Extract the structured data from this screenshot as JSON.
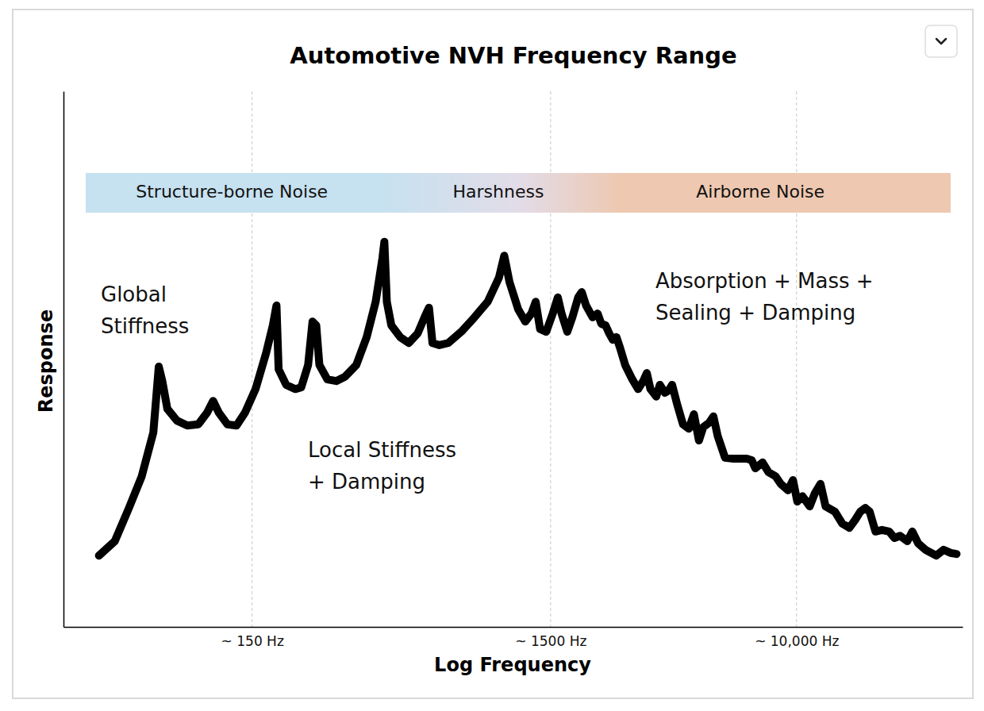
{
  "chart_data": {
    "type": "line",
    "title": "Automotive NVH Frequency Range",
    "x_label": "Log Frequency",
    "y_label": "Response",
    "log": "x",
    "grid": true,
    "tick_labels": "x",
    "color": "#000000",
    "line_style": "solid",
    "marker": "none",
    "xlim": [
      35,
      36000
    ],
    "ylim": [
      0,
      100
    ],
    "xticks": [
      {
        "value": 150,
        "label": "~ 150 Hz"
      },
      {
        "value": 1500,
        "label": "~ 1500 Hz"
      },
      {
        "value": 10000,
        "label": "~ 10,000 Hz"
      }
    ],
    "bands": [
      {
        "label": "Structure-borne Noise",
        "color": "#c6e1f0"
      },
      {
        "label": "Harshness",
        "color": "#e2dce8"
      },
      {
        "label": "Airborne Noise",
        "color": "#eec8b0"
      }
    ],
    "annotations": [
      "Global\nStiffness",
      "Local Stiffness\n+ Damping",
      "Absorption + Mass +\nSealing + Damping"
    ],
    "x": [
      46,
      52,
      58,
      64,
      70,
      73,
      75,
      78,
      84,
      91,
      99,
      106,
      111,
      116,
      124,
      133,
      142,
      154,
      167,
      176,
      181,
      184,
      195,
      209,
      219,
      231,
      239,
      246,
      252,
      268,
      287,
      307,
      335,
      363,
      389,
      410,
      416,
      424,
      439,
      470,
      502,
      538,
      567,
      587,
      603,
      636,
      681,
      753,
      834,
      923,
      1007,
      1049,
      1092,
      1168,
      1234,
      1293,
      1337,
      1383,
      1450,
      1525,
      1586,
      1632,
      1706,
      1774,
      1855,
      1907,
      1972,
      2074,
      2156,
      2217,
      2292,
      2357,
      2424,
      2493,
      2563,
      2666,
      2818,
      2947,
      3065,
      3151,
      3240,
      3388,
      3484,
      3623,
      3725,
      3830,
      3984,
      4166,
      4357,
      4531,
      4710,
      4871,
      5093,
      5266,
      5446,
      5758,
      6158,
      6808,
      7079,
      7279,
      7694,
      8051,
      8511,
      8850,
      9359,
      9730,
      10060,
      10470,
      11070,
      11510,
      12030,
      12510,
      13450,
      14220,
      15040,
      15730,
      16350,
      17010,
      17580,
      18390,
      19330,
      20440,
      21270,
      22230,
      23510,
      24440,
      25560,
      27030,
      29390,
      31080,
      32870,
      34370
    ],
    "values": [
      13.3,
      16.0,
      22.2,
      28.1,
      36.3,
      48.6,
      45.9,
      40.7,
      38.5,
      37.6,
      37.8,
      40.0,
      42.2,
      40.0,
      37.8,
      37.6,
      40.0,
      44.4,
      51.1,
      56.3,
      60.0,
      48.1,
      45.2,
      44.4,
      44.7,
      48.9,
      57.0,
      56.3,
      48.9,
      46.2,
      45.9,
      46.7,
      48.9,
      54.1,
      60.7,
      68.9,
      71.9,
      60.7,
      56.3,
      54.1,
      53.0,
      54.8,
      57.8,
      59.6,
      53.0,
      52.6,
      53.0,
      55.1,
      57.8,
      60.7,
      65.2,
      69.3,
      64.4,
      59.3,
      57.0,
      58.5,
      60.7,
      55.6,
      55.1,
      58.5,
      61.5,
      58.5,
      55.1,
      57.8,
      61.5,
      62.5,
      60.0,
      57.8,
      58.5,
      56.6,
      56.3,
      54.8,
      53.6,
      54.1,
      52.1,
      48.9,
      46.2,
      44.4,
      45.9,
      47.4,
      44.4,
      43.0,
      45.2,
      43.7,
      44.1,
      45.2,
      41.5,
      37.8,
      37.0,
      39.7,
      34.8,
      37.3,
      38.1,
      39.3,
      35.6,
      31.6,
      31.4,
      31.4,
      31.1,
      29.6,
      30.7,
      28.9,
      28.1,
      26.7,
      25.5,
      27.4,
      23.4,
      24.4,
      22.5,
      24.9,
      26.7,
      22.5,
      21.5,
      19.3,
      18.5,
      20.0,
      21.5,
      22.2,
      21.5,
      17.8,
      18.1,
      17.8,
      16.6,
      17.0,
      16.0,
      17.8,
      15.6,
      14.4,
      13.3,
      14.4,
      13.8,
      13.6
    ]
  }
}
